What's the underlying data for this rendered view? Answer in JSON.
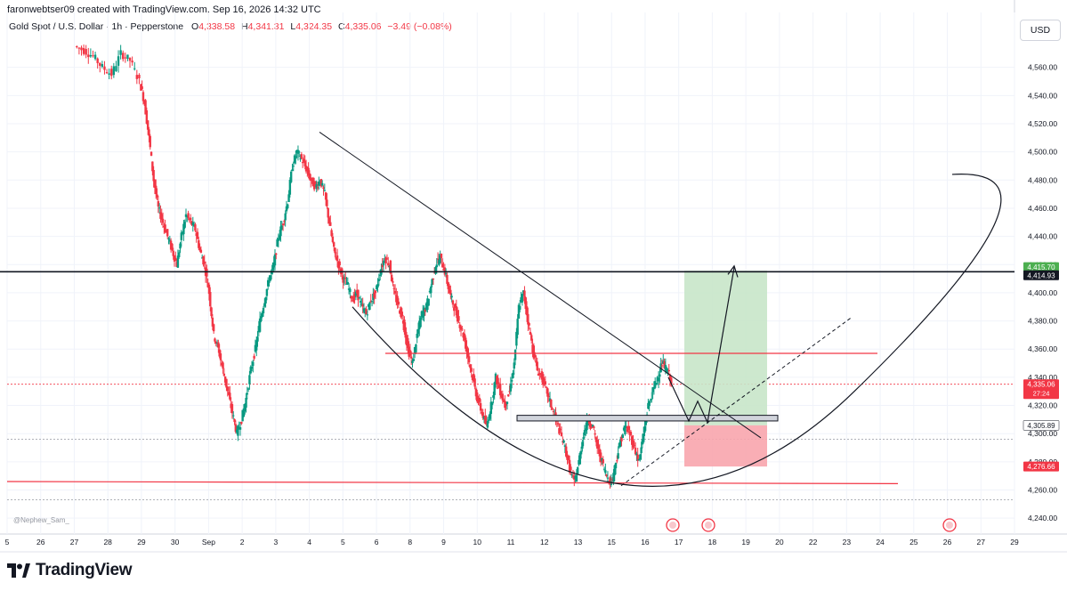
{
  "header": {
    "credit": "faronwebtser09 created with TradingView.com, Sep 16, 2026 14:32 UTC",
    "symbol": "Gold Spot / U.S. Dollar · 1h · Pepperstone",
    "ohlc": {
      "o_label": "O",
      "o": "4,338.58",
      "h_label": "H",
      "h": "4,341.31",
      "l_label": "L",
      "l": "4,324.35",
      "c_label": "C",
      "c": "4,335.06",
      "change": "−3.49 (−0.08%)"
    },
    "currency_button": "USD"
  },
  "watermark": "@Nephew_Sam_",
  "brand": "TradingView",
  "colors": {
    "up": "#089981",
    "down": "#f23645",
    "red_line": "#f23645",
    "target_zone": "#c8e6c9",
    "stop_zone": "#f8a5ad",
    "black_line": "#131722",
    "current_price_tag": "#f23645",
    "target_tag": "#4caf50"
  },
  "chart_data": {
    "type": "candlestick",
    "ylim": [
      4230,
      4580
    ],
    "y_ticks": [
      "4,240.00",
      "4,260.00",
      "4,280.00",
      "4,300.00",
      "4,320.00",
      "4,340.00",
      "4,360.00",
      "4,380.00",
      "4,400.00",
      "4,420.00",
      "4,440.00",
      "4,460.00",
      "4,480.00",
      "4,500.00",
      "4,520.00",
      "4,540.00",
      "4,560.00"
    ],
    "x_ticks": [
      "5",
      "26",
      "27",
      "28",
      "29",
      "30",
      "Sep",
      "2",
      "3",
      "4",
      "5",
      "6",
      "8",
      "9",
      "10",
      "11",
      "12",
      "13",
      "15",
      "16",
      "17",
      "18",
      "19",
      "20",
      "22",
      "23",
      "24",
      "25",
      "26",
      "27",
      "29"
    ],
    "price_tags": [
      {
        "label": "4,415.70",
        "value": 4415.7,
        "kind": "target"
      },
      {
        "label": "4,414.93",
        "value": 4414.93,
        "kind": "level"
      },
      {
        "label": "4,335.06",
        "value": 4335.06,
        "kind": "current",
        "sub": "27:24"
      },
      {
        "label": "4,305.89",
        "value": 4305.89,
        "kind": "entry"
      },
      {
        "label": "4,276.66",
        "value": 4276.66,
        "kind": "stop"
      }
    ],
    "levels": {
      "resistance": 4414.93,
      "red_upper": 4357,
      "red_lower": 4265,
      "entry_box_top": 4313,
      "entry_box_bottom": 4309
    },
    "position": {
      "entry": 4305.89,
      "target": 4415.7,
      "stop": 4276.66
    },
    "candles_close_path": [
      [
        0,
        4575
      ],
      [
        4,
        4572
      ],
      [
        8,
        4568
      ],
      [
        12,
        4560
      ],
      [
        16,
        4555
      ],
      [
        20,
        4570
      ],
      [
        24,
        4565
      ],
      [
        28,
        4550
      ],
      [
        30,
        4535
      ],
      [
        32,
        4510
      ],
      [
        34,
        4480
      ],
      [
        36,
        4460
      ],
      [
        38,
        4450
      ],
      [
        40,
        4440
      ],
      [
        42,
        4430
      ],
      [
        44,
        4420
      ],
      [
        46,
        4440
      ],
      [
        48,
        4455
      ],
      [
        50,
        4450
      ],
      [
        52,
        4445
      ],
      [
        54,
        4430
      ],
      [
        56,
        4420
      ],
      [
        58,
        4400
      ],
      [
        60,
        4370
      ],
      [
        62,
        4360
      ],
      [
        64,
        4345
      ],
      [
        66,
        4330
      ],
      [
        68,
        4315
      ],
      [
        70,
        4300
      ],
      [
        72,
        4310
      ],
      [
        74,
        4325
      ],
      [
        76,
        4345
      ],
      [
        78,
        4360
      ],
      [
        80,
        4380
      ],
      [
        82,
        4395
      ],
      [
        84,
        4410
      ],
      [
        86,
        4420
      ],
      [
        88,
        4440
      ],
      [
        90,
        4450
      ],
      [
        92,
        4465
      ],
      [
        94,
        4490
      ],
      [
        96,
        4500
      ],
      [
        98,
        4495
      ],
      [
        100,
        4488
      ],
      [
        102,
        4480
      ],
      [
        104,
        4475
      ],
      [
        106,
        4480
      ],
      [
        108,
        4470
      ],
      [
        110,
        4450
      ],
      [
        112,
        4430
      ],
      [
        114,
        4420
      ],
      [
        116,
        4410
      ],
      [
        118,
        4405
      ],
      [
        120,
        4395
      ],
      [
        122,
        4400
      ],
      [
        124,
        4390
      ],
      [
        126,
        4385
      ],
      [
        128,
        4395
      ],
      [
        130,
        4400
      ],
      [
        132,
        4415
      ],
      [
        134,
        4425
      ],
      [
        136,
        4420
      ],
      [
        138,
        4400
      ],
      [
        140,
        4390
      ],
      [
        142,
        4380
      ],
      [
        144,
        4360
      ],
      [
        146,
        4350
      ],
      [
        148,
        4370
      ],
      [
        150,
        4385
      ],
      [
        152,
        4390
      ],
      [
        154,
        4405
      ],
      [
        156,
        4420
      ],
      [
        158,
        4425
      ],
      [
        160,
        4415
      ],
      [
        162,
        4400
      ],
      [
        164,
        4390
      ],
      [
        166,
        4380
      ],
      [
        168,
        4370
      ],
      [
        170,
        4355
      ],
      [
        172,
        4340
      ],
      [
        174,
        4325
      ],
      [
        176,
        4315
      ],
      [
        178,
        4305
      ],
      [
        180,
        4320
      ],
      [
        182,
        4340
      ],
      [
        184,
        4330
      ],
      [
        186,
        4320
      ],
      [
        188,
        4330
      ],
      [
        190,
        4350
      ],
      [
        192,
        4390
      ],
      [
        194,
        4400
      ],
      [
        196,
        4380
      ],
      [
        198,
        4360
      ],
      [
        200,
        4345
      ],
      [
        202,
        4340
      ],
      [
        204,
        4330
      ],
      [
        206,
        4320
      ],
      [
        208,
        4310
      ],
      [
        210,
        4300
      ],
      [
        212,
        4290
      ],
      [
        214,
        4275
      ],
      [
        216,
        4265
      ],
      [
        218,
        4280
      ],
      [
        220,
        4300
      ],
      [
        222,
        4310
      ],
      [
        224,
        4305
      ],
      [
        226,
        4290
      ],
      [
        228,
        4280
      ],
      [
        230,
        4270
      ],
      [
        232,
        4265
      ],
      [
        234,
        4280
      ],
      [
        236,
        4295
      ],
      [
        238,
        4305
      ],
      [
        240,
        4300
      ],
      [
        242,
        4290
      ],
      [
        244,
        4280
      ],
      [
        246,
        4300
      ],
      [
        248,
        4320
      ],
      [
        250,
        4330
      ],
      [
        252,
        4340
      ],
      [
        254,
        4350
      ],
      [
        256,
        4345
      ],
      [
        258,
        4338
      ]
    ]
  }
}
